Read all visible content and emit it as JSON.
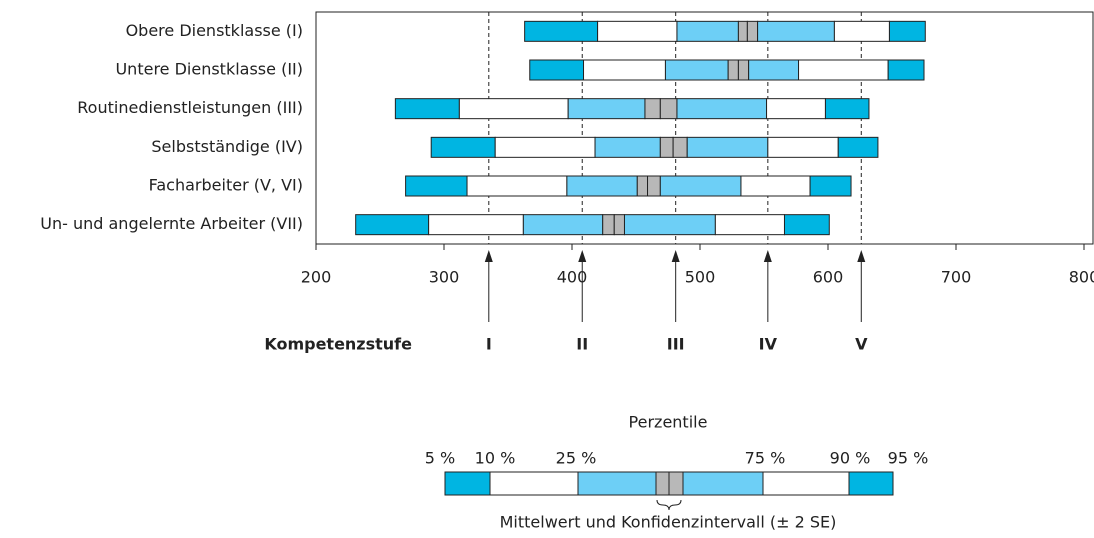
{
  "chart_data": {
    "type": "percentile-bar",
    "categories": [
      "Obere Dienstklasse (I)",
      "Untere Dienstklasse (II)",
      "Routinedienstleistungen (III)",
      "Selbstständige (IV)",
      "Facharbeiter (V, VI)",
      "Un- und angelernte Arbeiter (VII)"
    ],
    "values": [
      [
        363,
        420,
        482,
        530,
        537,
        545,
        605,
        648,
        676
      ],
      [
        367,
        409,
        473,
        522,
        530,
        538,
        577,
        647,
        675
      ],
      [
        262,
        312,
        397,
        457,
        469,
        482,
        552,
        598,
        632
      ],
      [
        290,
        340,
        418,
        469,
        479,
        490,
        553,
        608,
        639
      ],
      [
        270,
        318,
        396,
        451,
        459,
        469,
        532,
        586,
        618
      ],
      [
        231,
        288,
        362,
        424,
        433,
        441,
        512,
        566,
        601
      ]
    ],
    "colors": {
      "outer": "#00b5e2",
      "inner": "#6dcff6",
      "middle": "#ffffff",
      "ci": "#b8b8b8"
    },
    "xlim": [
      200,
      800
    ],
    "xticks": [
      200,
      300,
      400,
      500,
      600,
      700,
      800
    ],
    "levels": {
      "label": "Kompetenzstufe",
      "names": [
        "I",
        "II",
        "III",
        "IV",
        "V"
      ],
      "values": [
        335,
        408,
        481,
        553,
        626
      ]
    },
    "legend": {
      "title": "Perzentile",
      "labels": [
        "5 %",
        "10 %",
        "25 %",
        "75 %",
        "90 %",
        "95 %"
      ],
      "note": "Mittelwert und Konfidenzintervall (± 2 SE)"
    }
  }
}
